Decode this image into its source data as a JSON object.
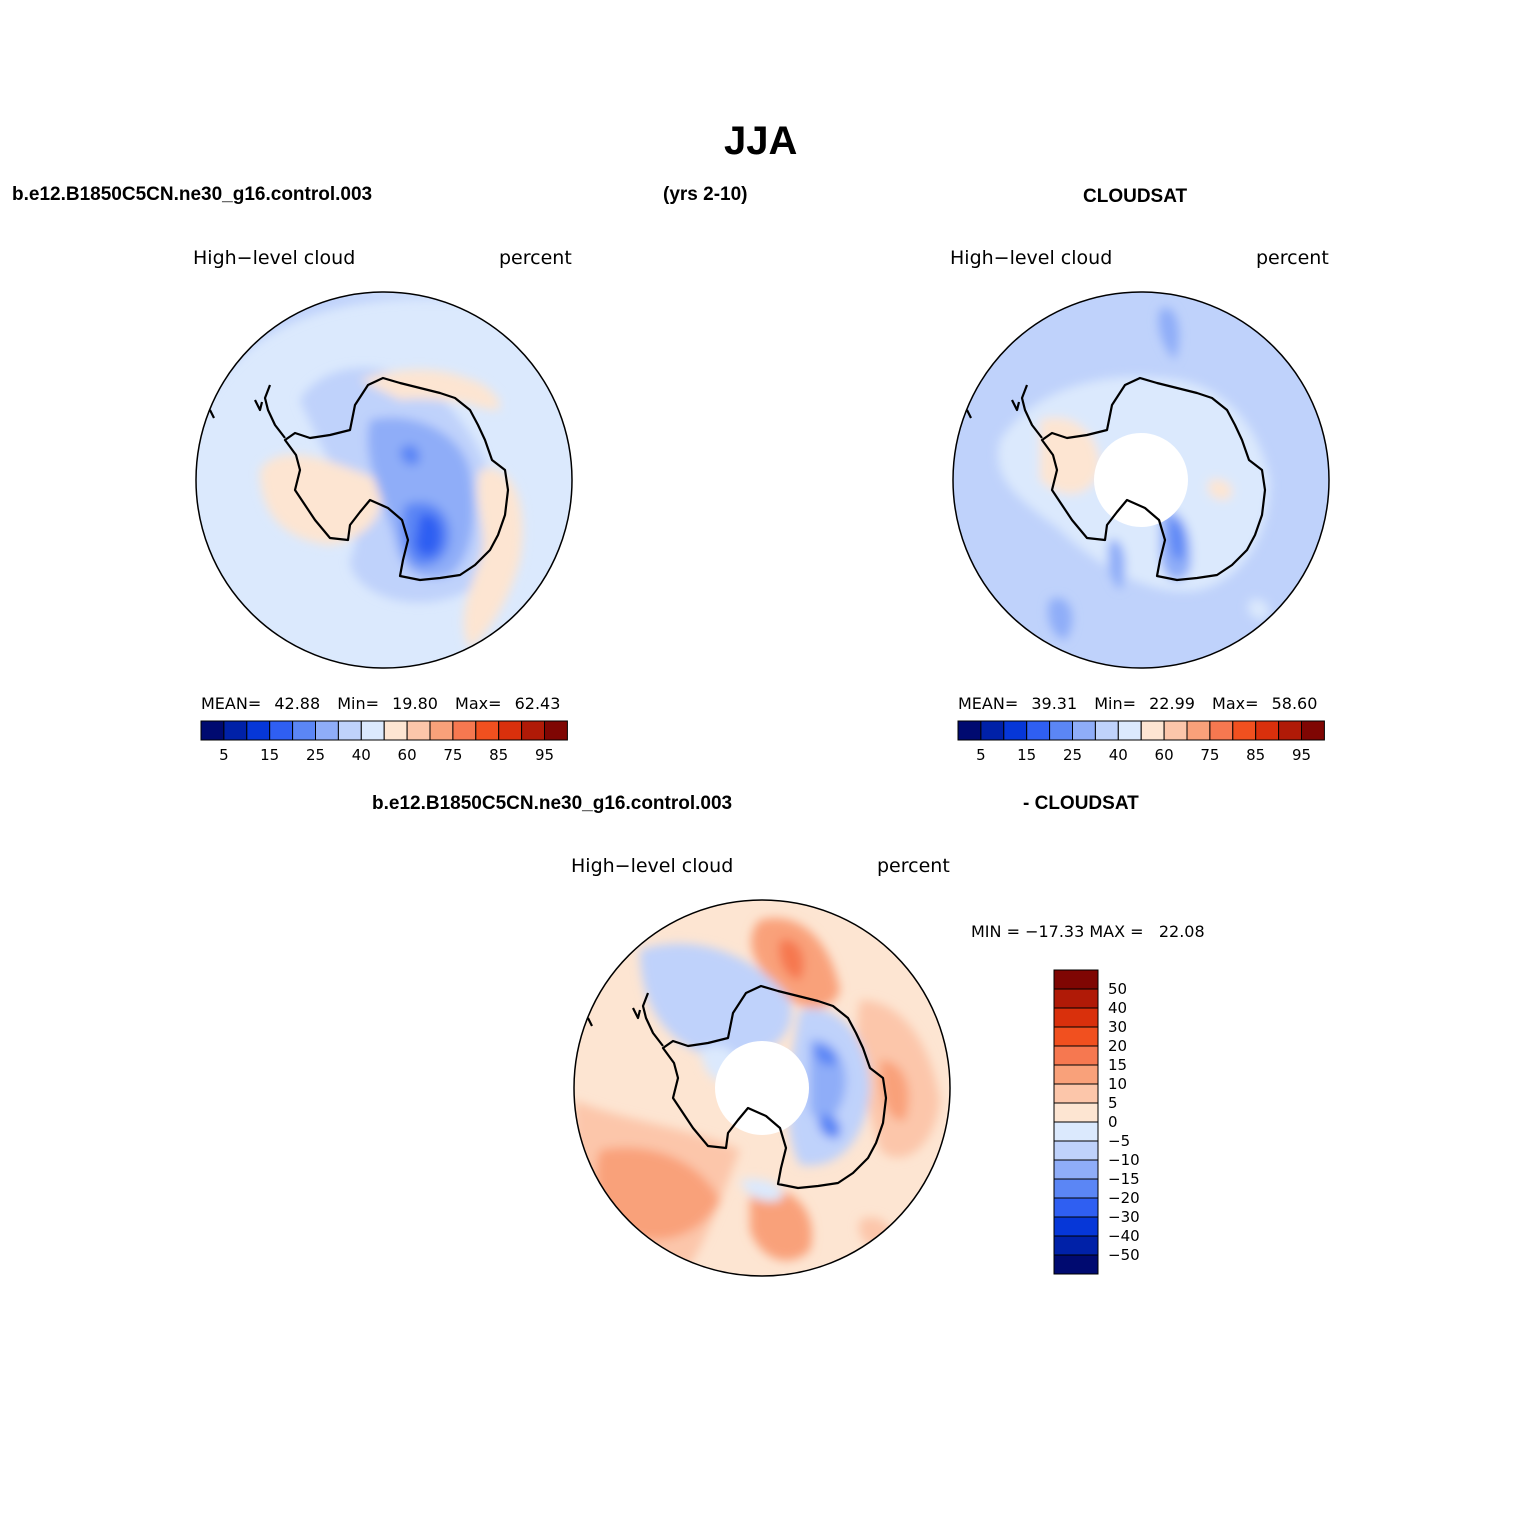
{
  "title": "JJA",
  "header": {
    "model": "b.e12.B1850C5CN.ne30_g16.control.003",
    "years": "(yrs 2-10)",
    "obs": "CLOUDSAT",
    "diff_model": "b.e12.B1850C5CN.ne30_g16.control.003",
    "diff_obs": "- CLOUDSAT"
  },
  "colors": {
    "scale": [
      "#000a70",
      "#0021a8",
      "#0637d8",
      "#2f5ff2",
      "#5b86f5",
      "#8fadf8",
      "#bfd2fb",
      "#dbe9fd",
      "#fde5d2",
      "#fcc6aa",
      "#f9a17a",
      "#f67850",
      "#f1501f",
      "#d9300c",
      "#b01a07",
      "#7f0603"
    ]
  },
  "panels": [
    {
      "id": "model",
      "variable": "High−level cloud",
      "units": "percent",
      "stats": {
        "mean_label": "MEAN=",
        "mean": "42.88",
        "min_label": "Min=",
        "min": "19.80",
        "max_label": "Max=",
        "max": "62.43"
      },
      "colorbar": {
        "levels": [
          5,
          10,
          15,
          20,
          25,
          30,
          40,
          50,
          60,
          70,
          75,
          80,
          85,
          90,
          95
        ],
        "labels": [
          "5",
          "15",
          "25",
          "40",
          "60",
          "75",
          "85",
          "95"
        ]
      }
    },
    {
      "id": "obs",
      "variable": "High−level cloud",
      "units": "percent",
      "stats": {
        "mean_label": "MEAN=",
        "mean": "39.31",
        "min_label": "Min=",
        "min": "22.99",
        "max_label": "Max=",
        "max": "58.60"
      },
      "colorbar": {
        "levels": [
          5,
          10,
          15,
          20,
          25,
          30,
          40,
          50,
          60,
          70,
          75,
          80,
          85,
          90,
          95
        ],
        "labels": [
          "5",
          "15",
          "25",
          "40",
          "60",
          "75",
          "85",
          "95"
        ]
      }
    },
    {
      "id": "diff",
      "variable": "High−level cloud",
      "units": "percent",
      "stats": {
        "text": "MIN = −17.33 MAX =   22.08"
      },
      "colorbar": {
        "labels": [
          "50",
          "40",
          "30",
          "20",
          "15",
          "10",
          "5",
          "0",
          "−5",
          "−10",
          "−15",
          "−20",
          "−30",
          "−40",
          "−50"
        ]
      }
    }
  ]
}
